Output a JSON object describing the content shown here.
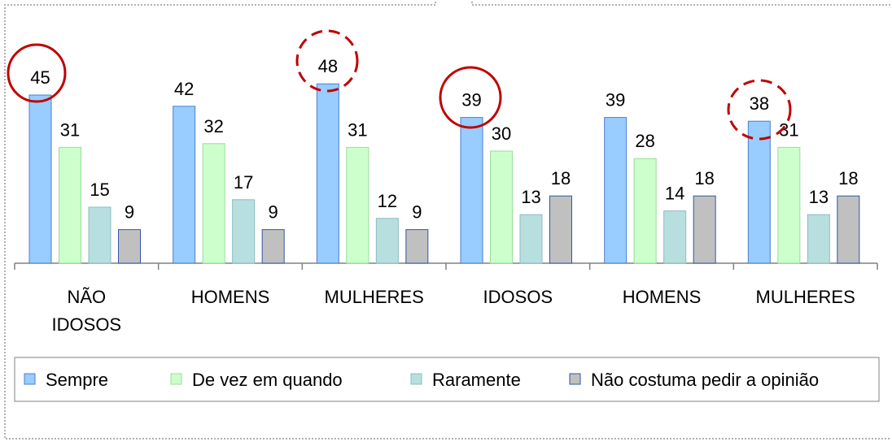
{
  "chart_data": {
    "type": "bar",
    "categories": [
      "NÃO IDOSOS",
      "HOMENS",
      "MULHERES",
      "IDOSOS",
      "HOMENS",
      "MULHERES"
    ],
    "series": [
      {
        "name": "Sempre",
        "color": "#99ccff",
        "values": [
          45,
          42,
          48,
          39,
          39,
          38
        ]
      },
      {
        "name": "De vez em quando",
        "color": "#ccffcc",
        "values": [
          31,
          32,
          31,
          30,
          28,
          31
        ]
      },
      {
        "name": "Raramente",
        "color": "#b7dfe0",
        "values": [
          15,
          17,
          12,
          13,
          14,
          13
        ]
      },
      {
        "name": "Não costuma pedir a opinião",
        "color": "#c0c0c0",
        "values": [
          9,
          9,
          9,
          18,
          18,
          18
        ]
      }
    ],
    "legend": "bottom"
  }
}
